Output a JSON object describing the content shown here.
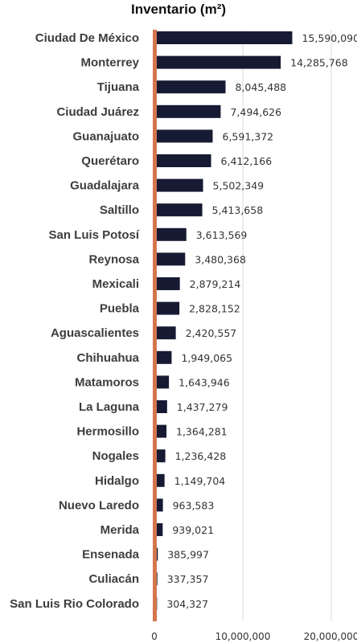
{
  "chart_data": {
    "type": "bar",
    "orientation": "horizontal",
    "title": "Inventario (m²)",
    "xlabel": "",
    "ylabel": "",
    "categories": [
      "Ciudad De México",
      "Monterrey",
      "Tijuana",
      "Ciudad Juárez",
      "Guanajuato",
      "Querétaro",
      "Guadalajara",
      "Saltillo",
      "San Luis Potosí",
      "Reynosa",
      "Mexicali",
      "Puebla",
      "Aguascalientes",
      "Chihuahua",
      "Matamoros",
      "La Laguna",
      "Hermosillo",
      "Nogales",
      "Hidalgo",
      "Nuevo Laredo",
      "Merida",
      "Ensenada",
      "Culiacán",
      "San Luis Rio Colorado"
    ],
    "values": [
      15590090,
      14285768,
      8045488,
      7494626,
      6591372,
      6412166,
      5502349,
      5413658,
      3613569,
      3480368,
      2879214,
      2828152,
      2420557,
      1949065,
      1643946,
      1437279,
      1364281,
      1236428,
      1149704,
      963583,
      939021,
      385997,
      337357,
      304327
    ],
    "value_labels": [
      "15,590,090",
      "14,285,768",
      "8,045,488",
      "7,494,626",
      "6,591,372",
      "6,412,166",
      "5,502,349",
      "5,413,658",
      "3,613,569",
      "3,480,368",
      "2,879,214",
      "2,828,152",
      "2,420,557",
      "1,949,065",
      "1,643,946",
      "1,437,279",
      "1,364,281",
      "1,236,428",
      "1,149,704",
      "963,583",
      "939,021",
      "385,997",
      "337,357",
      "304,327"
    ],
    "xlim": [
      0,
      25000000
    ],
    "x_ticks": [
      0,
      10000000,
      20000000
    ],
    "x_tick_labels": [
      "0",
      "10,000,000",
      "20,000,000"
    ],
    "grid": "vertical",
    "legend": "none",
    "colors": {
      "bar": "#161a33",
      "axis": "#d4764e",
      "grid": "#d9d9d9"
    }
  }
}
